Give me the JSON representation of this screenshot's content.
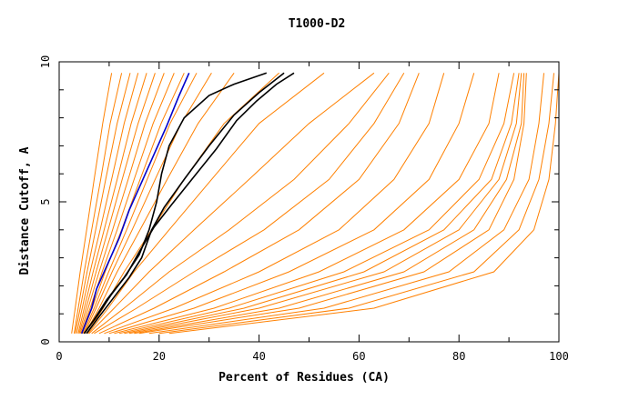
{
  "chart_data": {
    "type": "line",
    "title": "T1000-D2",
    "xlabel": "Percent of Residues (CA)",
    "ylabel": "Distance Cutoff, A",
    "xlim": [
      0,
      100
    ],
    "ylim": [
      0,
      10
    ],
    "x_ticks": [
      0,
      20,
      40,
      60,
      80,
      100
    ],
    "y_ticks": [
      0,
      5,
      10
    ],
    "x_tick_labels": [
      "0",
      "20",
      "40",
      "60",
      "80",
      "100"
    ],
    "y_tick_labels": [
      "0",
      "5",
      "10"
    ],
    "grid": false,
    "legend": "none",
    "colors": {
      "background_series": "#ff8000",
      "highlight_blue": "#0000cc",
      "highlight_black": "#000000"
    },
    "background_series": [
      {
        "x": [
          2.5,
          3.2,
          4.2,
          5.5,
          7.0,
          8.7,
          10.5
        ],
        "y": [
          0.3,
          1.2,
          2.5,
          4.0,
          5.8,
          7.8,
          9.6
        ]
      },
      {
        "x": [
          3.0,
          3.8,
          5.0,
          6.5,
          8.3,
          10.2,
          12.5
        ],
        "y": [
          0.3,
          1.2,
          2.5,
          4.0,
          5.8,
          7.8,
          9.6
        ]
      },
      {
        "x": [
          3.2,
          4.2,
          5.6,
          7.3,
          9.3,
          11.6,
          14.2
        ],
        "y": [
          0.3,
          1.2,
          2.5,
          4.0,
          5.8,
          7.8,
          9.6
        ]
      },
      {
        "x": [
          3.5,
          4.6,
          6.2,
          8.2,
          10.5,
          13.0,
          15.8
        ],
        "y": [
          0.3,
          1.2,
          2.5,
          4.0,
          5.8,
          7.8,
          9.6
        ]
      },
      {
        "x": [
          3.8,
          5.0,
          6.8,
          9.0,
          11.6,
          14.4,
          17.5
        ],
        "y": [
          0.3,
          1.2,
          2.5,
          4.0,
          5.8,
          7.8,
          9.6
        ]
      },
      {
        "x": [
          4.0,
          5.4,
          7.4,
          9.8,
          12.6,
          15.8,
          19.2
        ],
        "y": [
          0.3,
          1.2,
          2.5,
          4.0,
          5.8,
          7.8,
          9.6
        ]
      },
      {
        "x": [
          4.2,
          5.8,
          8.0,
          10.7,
          13.8,
          17.2,
          21.0
        ],
        "y": [
          0.3,
          1.2,
          2.5,
          4.0,
          5.8,
          7.8,
          9.6
        ]
      },
      {
        "x": [
          4.4,
          6.2,
          8.6,
          11.6,
          15.0,
          18.8,
          23.0
        ],
        "y": [
          0.3,
          1.2,
          2.5,
          4.0,
          5.8,
          7.8,
          9.6
        ]
      },
      {
        "x": [
          4.6,
          6.6,
          9.2,
          12.5,
          16.2,
          20.4,
          25.0
        ],
        "y": [
          0.3,
          1.2,
          2.5,
          4.0,
          5.8,
          7.8,
          9.6
        ]
      },
      {
        "x": [
          4.8,
          7.0,
          9.9,
          13.5,
          17.6,
          22.2,
          27.5
        ],
        "y": [
          0.3,
          1.2,
          2.5,
          4.0,
          5.8,
          7.8,
          9.6
        ]
      },
      {
        "x": [
          5.0,
          7.4,
          10.6,
          14.6,
          19.2,
          24.4,
          30.5
        ],
        "y": [
          0.3,
          1.2,
          2.5,
          4.0,
          5.8,
          7.8,
          9.6
        ]
      },
      {
        "x": [
          5.2,
          8.0,
          11.6,
          16.2,
          21.6,
          27.8,
          35.0
        ],
        "y": [
          0.3,
          1.2,
          2.5,
          4.0,
          5.8,
          7.8,
          9.6
        ]
      },
      {
        "x": [
          5.5,
          8.8,
          13.0,
          18.5,
          25.0,
          33.0,
          44.0
        ],
        "y": [
          0.3,
          1.2,
          2.5,
          4.0,
          5.8,
          7.8,
          9.6
        ]
      },
      {
        "x": [
          5.8,
          9.8,
          15.0,
          22.0,
          30.5,
          40.0,
          53.0
        ],
        "y": [
          0.3,
          1.2,
          2.5,
          4.0,
          5.8,
          7.8,
          9.6
        ]
      },
      {
        "x": [
          6.0,
          11.0,
          18.0,
          27.0,
          38.0,
          50.0,
          63.0
        ],
        "y": [
          0.3,
          1.2,
          2.5,
          4.0,
          5.8,
          7.8,
          9.6
        ]
      },
      {
        "x": [
          6.5,
          13.0,
          22.0,
          34.0,
          47.0,
          58.0,
          66.0
        ],
        "y": [
          0.3,
          1.2,
          2.5,
          4.0,
          5.8,
          7.8,
          9.6
        ]
      },
      {
        "x": [
          7.0,
          15.5,
          27.0,
          41.0,
          54.0,
          63.0,
          69.0
        ],
        "y": [
          0.3,
          1.2,
          2.5,
          4.0,
          5.8,
          7.8,
          9.6
        ]
      },
      {
        "x": [
          8.0,
          19.0,
          33.0,
          48.0,
          60.0,
          68.0,
          72.0
        ],
        "y": [
          0.3,
          1.2,
          2.5,
          4.0,
          5.8,
          7.8,
          9.6
        ]
      },
      {
        "x": [
          9.0,
          23.0,
          40.0,
          56.0,
          67.0,
          74.0,
          77.0
        ],
        "y": [
          0.3,
          1.2,
          2.5,
          4.0,
          5.8,
          7.8,
          9.6
        ]
      },
      {
        "x": [
          10.0,
          27.0,
          46.0,
          63.0,
          74.0,
          80.0,
          83.0
        ],
        "y": [
          0.3,
          1.2,
          2.5,
          4.0,
          5.8,
          7.8,
          9.6
        ]
      },
      {
        "x": [
          11.0,
          31.0,
          52.0,
          69.0,
          80.0,
          86.0,
          88.0
        ],
        "y": [
          0.3,
          1.2,
          2.5,
          4.0,
          5.8,
          7.8,
          9.6
        ]
      },
      {
        "x": [
          12.0,
          34.0,
          57.0,
          74.0,
          84.0,
          89.0,
          91.0
        ],
        "y": [
          0.3,
          1.2,
          2.5,
          4.0,
          5.8,
          7.8,
          9.6
        ]
      },
      {
        "x": [
          13.0,
          37.0,
          61.0,
          77.0,
          86.5,
          90.5,
          92.0
        ],
        "y": [
          0.3,
          1.2,
          2.5,
          4.0,
          5.8,
          7.8,
          9.6
        ]
      },
      {
        "x": [
          14.0,
          40.0,
          65.0,
          80.0,
          88.0,
          91.5,
          92.5
        ],
        "y": [
          0.3,
          1.2,
          2.5,
          4.0,
          5.8,
          7.8,
          9.6
        ]
      },
      {
        "x": [
          15.0,
          44.0,
          69.0,
          83.0,
          89.5,
          92.5,
          93.0
        ],
        "y": [
          0.3,
          1.2,
          2.5,
          4.0,
          5.8,
          7.8,
          9.6
        ]
      },
      {
        "x": [
          16.0,
          48.0,
          73.0,
          86.0,
          91.0,
          93.0,
          93.5
        ],
        "y": [
          0.3,
          1.2,
          2.5,
          4.0,
          5.8,
          7.8,
          9.6
        ]
      },
      {
        "x": [
          18.0,
          53.0,
          78.0,
          89.0,
          94.0,
          96.0,
          97.0
        ],
        "y": [
          0.3,
          1.2,
          2.5,
          4.0,
          5.8,
          7.8,
          9.6
        ]
      },
      {
        "x": [
          20.0,
          58.0,
          83.0,
          92.0,
          96.0,
          98.0,
          99.0
        ],
        "y": [
          0.3,
          1.2,
          2.5,
          4.0,
          5.8,
          7.8,
          9.6
        ]
      },
      {
        "x": [
          22.0,
          63.0,
          87.0,
          95.0,
          98.0,
          99.3,
          100.0
        ],
        "y": [
          0.3,
          1.2,
          2.5,
          4.0,
          5.8,
          7.8,
          9.6
        ]
      }
    ],
    "highlight_series": [
      {
        "color": "#0000cc",
        "x": [
          4.5,
          6.5,
          7.5,
          9.5,
          12.0,
          14.0,
          16.5,
          19.0,
          21.5,
          24.0,
          26.0
        ],
        "y": [
          0.3,
          1.2,
          1.9,
          2.7,
          3.7,
          4.7,
          5.7,
          6.7,
          7.7,
          8.8,
          9.6
        ]
      },
      {
        "color": "#000000",
        "x": [
          5.0,
          7.0,
          9.5,
          13.0,
          16.0,
          18.0,
          19.5,
          20.5,
          22.0,
          25.0,
          30.0,
          35.0,
          41.5
        ],
        "y": [
          0.3,
          0.8,
          1.5,
          2.3,
          3.1,
          4.0,
          5.0,
          6.0,
          7.0,
          8.0,
          8.8,
          9.2,
          9.6
        ]
      },
      {
        "color": "#000000",
        "x": [
          5.5,
          8.0,
          11.0,
          14.0,
          16.5,
          18.5,
          21.0,
          25.0,
          30.0,
          35.0,
          40.0,
          45.0
        ],
        "y": [
          0.3,
          0.9,
          1.6,
          2.3,
          3.0,
          4.0,
          4.8,
          5.8,
          7.0,
          8.1,
          8.9,
          9.6
        ]
      },
      {
        "color": "#000000",
        "x": [
          5.0,
          7.5,
          10.5,
          13.5,
          16.0,
          19.0,
          22.5,
          27.0,
          31.5,
          35.5,
          39.5,
          43.5,
          47.0
        ],
        "y": [
          0.3,
          0.9,
          1.7,
          2.4,
          3.2,
          4.1,
          4.9,
          5.9,
          6.9,
          7.9,
          8.6,
          9.2,
          9.6
        ]
      }
    ]
  }
}
